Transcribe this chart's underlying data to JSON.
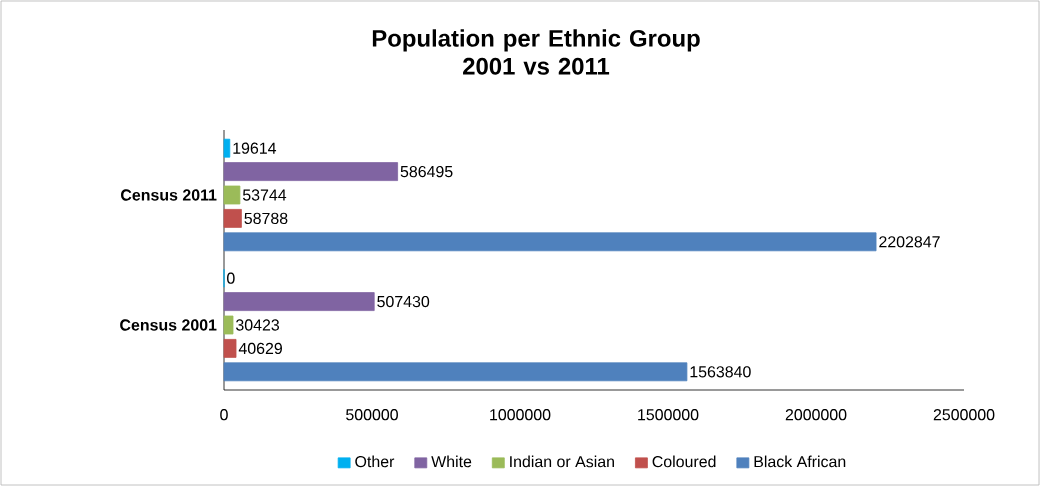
{
  "chart_data": {
    "type": "bar",
    "orientation": "horizontal",
    "title": "Population per Ethnic Group\n2001 vs 2011",
    "categories": [
      "Census 2011",
      "Census 2001"
    ],
    "series": [
      {
        "name": "Other",
        "color": "#00b0f0",
        "values": [
          19614,
          0
        ]
      },
      {
        "name": "White",
        "color": "#8064a2",
        "values": [
          586495,
          507430
        ]
      },
      {
        "name": "Indian or Asian",
        "color": "#9bbb59",
        "values": [
          53744,
          30423
        ]
      },
      {
        "name": "Coloured",
        "color": "#c0504d",
        "values": [
          58788,
          40629
        ]
      },
      {
        "name": "Black African",
        "color": "#4f81bd",
        "values": [
          2202847,
          1563840
        ]
      }
    ],
    "xlim": [
      0,
      2500000
    ],
    "xticks": [
      0,
      500000,
      1000000,
      1500000,
      2000000,
      2500000
    ],
    "data_labels": true,
    "legend": "bottom",
    "grid": false
  }
}
